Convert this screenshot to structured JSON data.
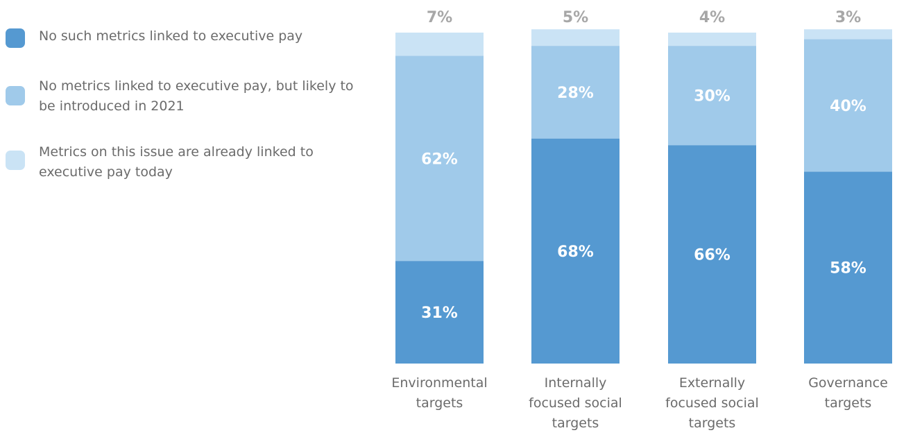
{
  "legend": [
    {
      "label": "No such metrics linked to executive pay",
      "color": "#5599d1"
    },
    {
      "label": "No metrics linked to executive pay, but likely to be introduced in 2021",
      "color": "#a0caea"
    },
    {
      "label": "Metrics on this issue are already linked to executive pay today",
      "color": "#cae3f5"
    }
  ],
  "chart_data": {
    "type": "bar",
    "stacked": true,
    "categories": [
      [
        "Environmental",
        "targets"
      ],
      [
        "Internally",
        "focused social",
        "targets"
      ],
      [
        "Externally",
        "focused social",
        "targets"
      ],
      [
        "Governance",
        "targets"
      ]
    ],
    "series": [
      {
        "name": "No such metrics linked to executive pay",
        "values": [
          31,
          68,
          66,
          58
        ],
        "color": "#5599d1"
      },
      {
        "name": "No metrics linked to executive pay, but likely to be introduced in 2021",
        "values": [
          62,
          28,
          30,
          40
        ],
        "color": "#a0caea"
      },
      {
        "name": "Metrics on this issue are already linked to executive pay today",
        "values": [
          7,
          5,
          4,
          3
        ],
        "color": "#cae3f5"
      }
    ],
    "value_suffix": "%",
    "ylim": [
      0,
      100
    ],
    "grid": false,
    "legend_position": "left"
  }
}
